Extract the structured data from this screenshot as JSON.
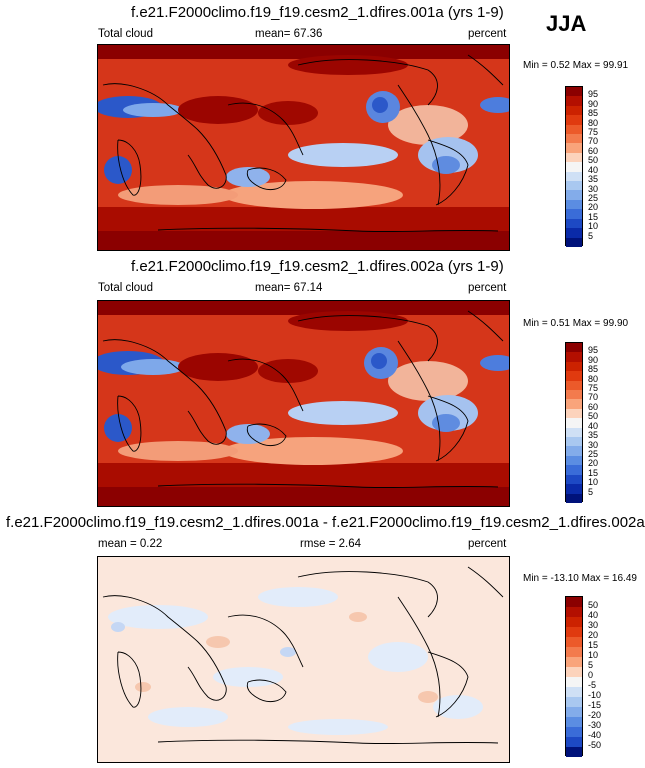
{
  "season": "JJA",
  "panels": [
    {
      "title": "f.e21.F2000climo.f19_f19.cesm2_1.dfires.001a (yrs 1-9)",
      "left_label": "Total cloud",
      "center_label": "mean=  67.36",
      "right_label": "percent",
      "minmax": "Min =   0.52 Max =  99.91"
    },
    {
      "title": "f.e21.F2000climo.f19_f19.cesm2_1.dfires.002a (yrs 1-9)",
      "left_label": "Total cloud",
      "center_label": "mean=  67.14",
      "right_label": "percent",
      "minmax": "Min =   0.51 Max =  99.90"
    },
    {
      "title": "f.e21.F2000climo.f19_f19.cesm2_1.dfires.001a - f.e21.F2000climo.f19_f19.cesm2_1.dfires.002a",
      "left_label": "mean =   0.22",
      "center_label": "rmse =   2.64",
      "right_label": "percent",
      "minmax": "Min = -13.10 Max =  16.49"
    }
  ],
  "colorbar_abs": {
    "labels": [
      "95",
      "90",
      "85",
      "80",
      "75",
      "70",
      "60",
      "50",
      "40",
      "35",
      "30",
      "25",
      "20",
      "15",
      "10",
      "5"
    ],
    "colors": [
      "#8b0000",
      "#b30f00",
      "#cc2200",
      "#e03a0f",
      "#ec5a2a",
      "#f37b4d",
      "#f9a47b",
      "#fcd3bc",
      "#f5f5f5",
      "#cfe0f5",
      "#a9c8f0",
      "#83acea",
      "#5b8de2",
      "#3a6cd8",
      "#1d49c4",
      "#0a2aa8",
      "#00127a"
    ]
  },
  "colorbar_diff": {
    "labels": [
      "50",
      "40",
      "30",
      "20",
      "15",
      "10",
      "5",
      "0",
      "-5",
      "-10",
      "-15",
      "-20",
      "-30",
      "-40",
      "-50"
    ],
    "colors": [
      "#8b0000",
      "#b30f00",
      "#cc2200",
      "#e03a0f",
      "#ec5a2a",
      "#f37b4d",
      "#f9a47b",
      "#fcd3bc",
      "#f5f5f5",
      "#cfe0f5",
      "#a9c8f0",
      "#83acea",
      "#5b8de2",
      "#3a6cd8",
      "#1d49c4",
      "#00127a"
    ]
  }
}
